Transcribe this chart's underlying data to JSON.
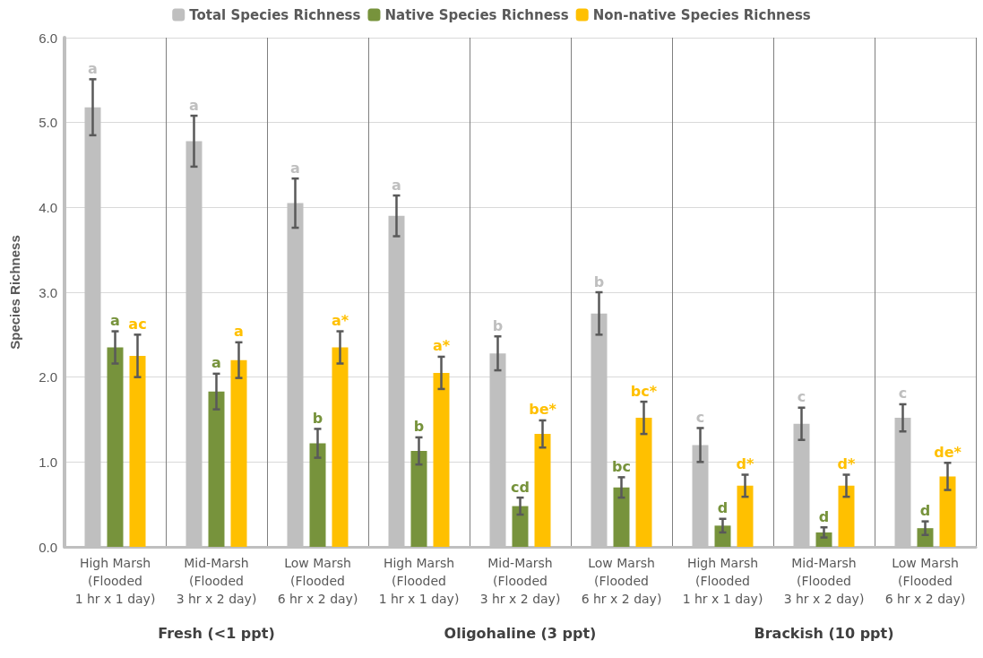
{
  "chart_data": {
    "type": "bar",
    "ylabel": "Species Richness",
    "categories": [
      "High Marsh\n(Flooded\n1 hr x 1 day)",
      "Mid-Marsh\n(Flooded\n3 hr x 2 day)",
      "Low Marsh\n(Flooded\n6 hr x 2 day)",
      "High Marsh\n(Flooded\n1 hr x 1 day)",
      "Mid-Marsh\n(Flooded\n3 hr x 2 day)",
      "Low Marsh\n(Flooded\n6 hr x 2 day)",
      "High Marsh\n(Flooded\n1 hr x 1 day)",
      "Mid-Marsh\n(Flooded\n3 hr x 2 day)",
      "Low Marsh\n(Flooded\n6 hr x 2 day)"
    ],
    "series": [
      {
        "name": "Total Species Richness",
        "color": "#bfbfbf",
        "values": [
          5.18,
          4.78,
          4.05,
          3.9,
          2.28,
          2.75,
          1.2,
          1.45,
          1.52
        ],
        "errors": [
          0.33,
          0.3,
          0.29,
          0.24,
          0.2,
          0.25,
          0.2,
          0.19,
          0.16
        ],
        "value_labels": [
          "a",
          "a",
          "a",
          "a",
          "b",
          "b",
          "c",
          "c",
          "c"
        ]
      },
      {
        "name": "Native Species Richness",
        "color": "#77933c",
        "values": [
          2.35,
          1.83,
          1.22,
          1.13,
          0.48,
          0.7,
          0.25,
          0.17,
          0.22
        ],
        "errors": [
          0.19,
          0.21,
          0.17,
          0.16,
          0.1,
          0.12,
          0.08,
          0.06,
          0.08
        ],
        "value_labels": [
          "a",
          "a",
          "b",
          "b",
          "cd",
          "bc",
          "d",
          "d",
          "d"
        ]
      },
      {
        "name": "Non-native Species Richness",
        "color": "#ffc000",
        "values": [
          2.25,
          2.2,
          2.35,
          2.05,
          1.33,
          1.52,
          0.72,
          0.72,
          0.83
        ],
        "errors": [
          0.25,
          0.21,
          0.19,
          0.19,
          0.16,
          0.19,
          0.13,
          0.13,
          0.16
        ],
        "value_labels": [
          "ac",
          "a",
          "a*",
          "a*",
          "be*",
          "bc*",
          "d*",
          "d*",
          "de*"
        ]
      }
    ],
    "annotations": [
      "Fresh (<1 ppt)",
      "Oligohaline (3 ppt)",
      "Brackish (10 ppt)"
    ],
    "ylim": [
      0,
      6
    ],
    "yticks": [
      {
        "value": 0,
        "label": "0.0"
      },
      {
        "value": 1,
        "label": "1.0"
      },
      {
        "value": 2,
        "label": "2.0"
      },
      {
        "value": 3,
        "label": "3.0"
      },
      {
        "value": 4,
        "label": "4.0"
      },
      {
        "value": 5,
        "label": "5.0"
      },
      {
        "value": 6,
        "label": "6.0"
      }
    ],
    "grid": "y",
    "legend": "top"
  }
}
